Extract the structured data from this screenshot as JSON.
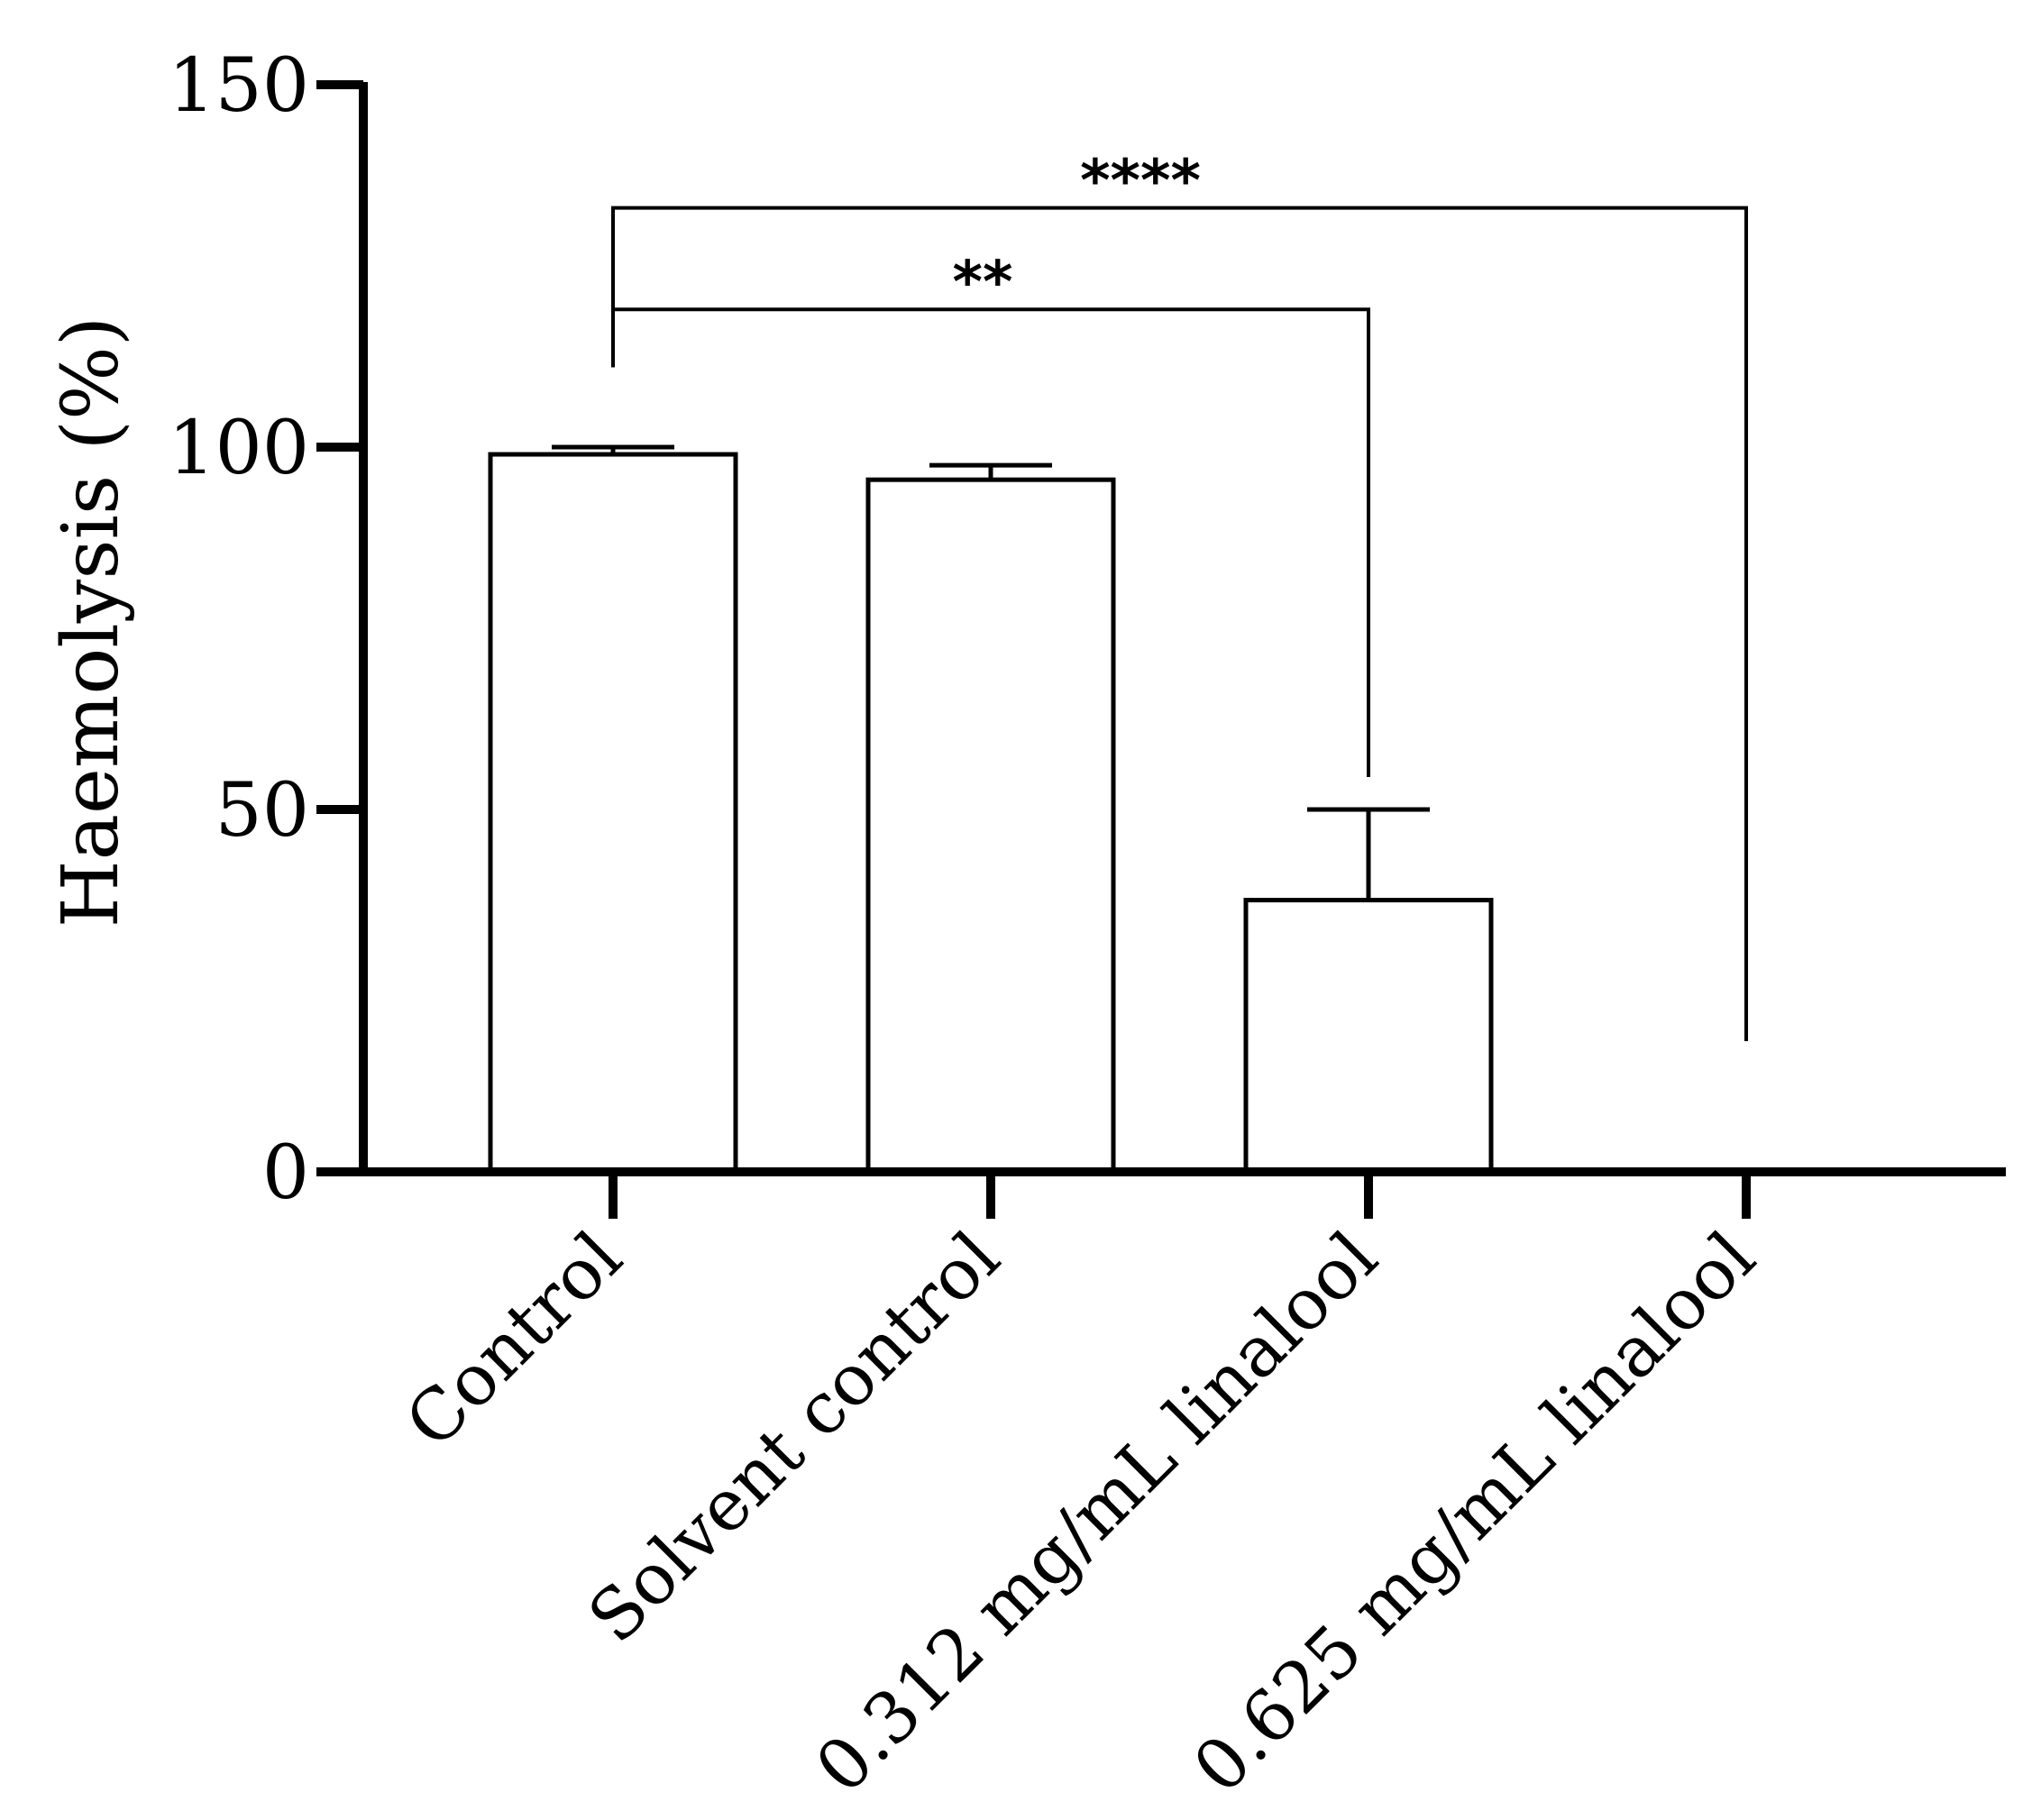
{
  "chart_data": {
    "type": "bar",
    "title": "",
    "xlabel": "",
    "ylabel": "Haemolysis (%)",
    "ylim": [
      0,
      150
    ],
    "yticks": [
      0,
      50,
      100,
      150
    ],
    "grid": false,
    "categories": [
      "Control",
      "Solvent control",
      "0.312 mg/mL linalool",
      "0.625 mg/mL linalool"
    ],
    "values": [
      99,
      95.5,
      37.5,
      0
    ],
    "error_upper": [
      1,
      2,
      12.5,
      0
    ],
    "significance": [
      {
        "from": "Control",
        "to": "0.312 mg/mL linalool",
        "label": "**",
        "bracket_y": 119
      },
      {
        "from": "Control",
        "to": "0.625 mg/mL linalool",
        "label": "****",
        "bracket_y": 133
      }
    ],
    "colors": {
      "bar_fill": "#ffffff",
      "bar_stroke": "#000000",
      "axis": "#000000"
    }
  }
}
